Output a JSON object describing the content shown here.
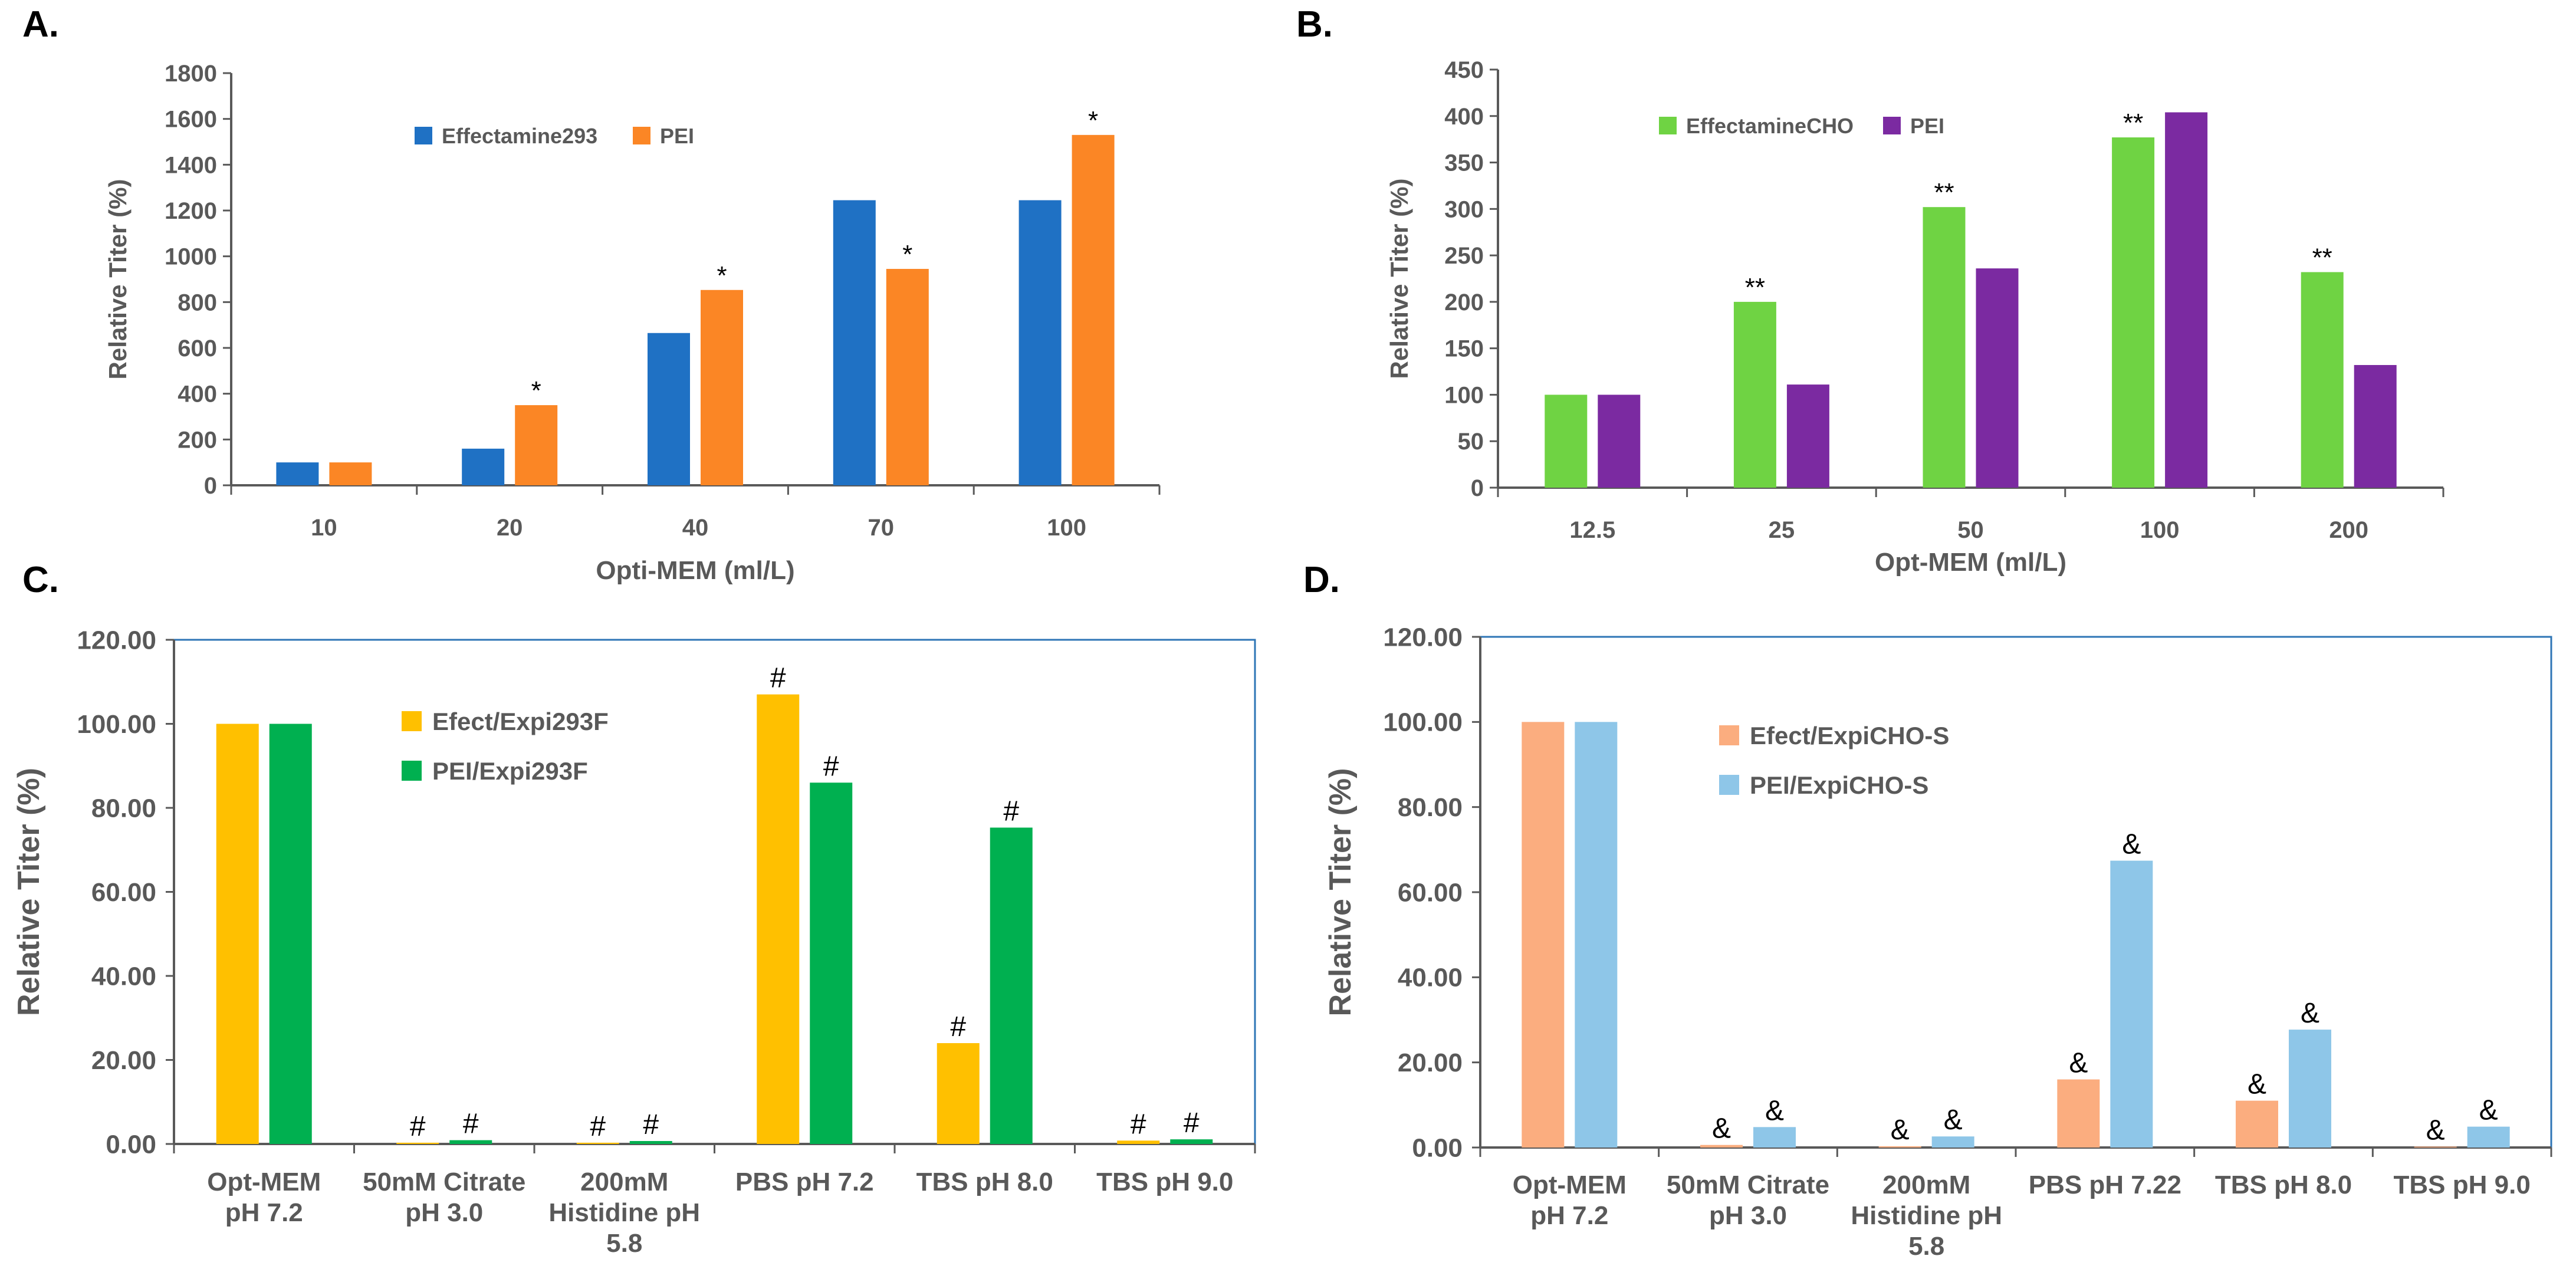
{
  "chart_data": [
    {
      "id": "A",
      "panel_label": "A.",
      "type": "bar",
      "title": "",
      "xlabel": "Opti-MEM (ml/L)",
      "ylabel": "Relative Titer (%)",
      "ylim": [
        0,
        1800
      ],
      "ytick_step": 200,
      "ytick_decimals": 0,
      "grid": false,
      "legend_position": "top-center",
      "legend_layout": "horizontal",
      "categories": [
        "10",
        "20",
        "40",
        "70",
        "100"
      ],
      "series": [
        {
          "name": "Effectamine293",
          "color": "#1f71c4",
          "values": [
            100,
            160,
            665,
            1245,
            1245
          ],
          "annotations": [
            "",
            "",
            "",
            "",
            ""
          ]
        },
        {
          "name": "PEI",
          "color": "#fb8625",
          "values": [
            100,
            350,
            853,
            945,
            1530
          ],
          "annotations": [
            "",
            "*",
            "*",
            "*",
            "*"
          ]
        }
      ]
    },
    {
      "id": "B",
      "panel_label": "B.",
      "type": "bar",
      "title": "",
      "xlabel": "Opt-MEM (ml/L)",
      "ylabel": "Relative Titer (%)",
      "ylim": [
        0,
        450
      ],
      "ytick_step": 50,
      "ytick_decimals": 0,
      "grid": false,
      "legend_position": "top-left",
      "legend_layout": "horizontal",
      "categories": [
        "12.5",
        "25",
        "50",
        "100",
        "200"
      ],
      "series": [
        {
          "name": "EffectamineCHO",
          "color": "#6fd343",
          "values": [
            100,
            200,
            302,
            377,
            232
          ],
          "annotations": [
            "",
            "**",
            "**",
            "**",
            "**"
          ]
        },
        {
          "name": "PEI",
          "color": "#7b2aa1",
          "values": [
            100,
            111,
            236,
            404,
            132
          ],
          "annotations": [
            "",
            "",
            "",
            "",
            ""
          ]
        }
      ]
    },
    {
      "id": "C",
      "panel_label": "C.",
      "type": "bar",
      "title": "",
      "xlabel": "",
      "ylabel": "Relative Titer (%)",
      "ylim": [
        0,
        120
      ],
      "ytick_step": 20,
      "ytick_decimals": 2,
      "grid": false,
      "legend_position": "top-left",
      "legend_layout": "vertical",
      "categories": [
        "Opt-MEM pH 7.2",
        "50mM Citrate pH 3.0",
        "200mM Histidine pH 5.8",
        "PBS pH 7.2",
        "TBS pH 8.0",
        "TBS pH 9.0"
      ],
      "category_lines": [
        [
          "Opt-MEM",
          "pH 7.2"
        ],
        [
          "50mM Citrate",
          "pH 3.0"
        ],
        [
          "200mM",
          "Histidine pH",
          "5.8"
        ],
        [
          "PBS pH 7.2"
        ],
        [
          "TBS pH 8.0"
        ],
        [
          "TBS pH 9.0"
        ]
      ],
      "series": [
        {
          "name": "Efect/Expi293F",
          "color": "#ffc000",
          "values": [
            100,
            0.3,
            0.3,
            107,
            24,
            0.8
          ],
          "annotations": [
            "",
            "#",
            "#",
            "#",
            "#",
            "#"
          ]
        },
        {
          "name": "PEI/Expi293F",
          "color": "#00b050",
          "values": [
            100,
            0.9,
            0.7,
            86,
            75.3,
            1.1
          ],
          "annotations": [
            "",
            "#",
            "#",
            "#",
            "#",
            "#"
          ]
        }
      ]
    },
    {
      "id": "D",
      "panel_label": "D.",
      "type": "bar",
      "title": "",
      "xlabel": "",
      "ylabel": "Relative Titer (%)",
      "ylim": [
        0,
        120
      ],
      "ytick_step": 20,
      "ytick_decimals": 2,
      "grid": false,
      "legend_position": "top-left",
      "legend_layout": "vertical",
      "categories": [
        "Opt-MEM pH 7.2",
        "50mM Citrate pH 3.0",
        "200mM Histidine pH 5.8",
        "PBS pH 7.22",
        "TBS pH 8.0",
        "TBS pH 9.0"
      ],
      "category_lines": [
        [
          "Opt-MEM",
          "pH 7.2"
        ],
        [
          "50mM Citrate",
          "pH 3.0"
        ],
        [
          "200mM",
          "Histidine pH",
          "5.8"
        ],
        [
          "PBS pH 7.22"
        ],
        [
          "TBS pH 8.0"
        ],
        [
          "TBS pH 9.0"
        ]
      ],
      "series": [
        {
          "name": "Efect/ExpiCHO-S",
          "color": "#fbad7f",
          "values": [
            100,
            0.6,
            0.3,
            16,
            11,
            0.2
          ],
          "annotations": [
            "",
            "&",
            "&",
            "&",
            "&",
            "&"
          ]
        },
        {
          "name": "PEI/ExpiCHO-S",
          "color": "#8ec6e8",
          "values": [
            100,
            4.8,
            2.6,
            67.4,
            27.7,
            4.9
          ],
          "annotations": [
            "",
            "&",
            "&",
            "&",
            "&",
            "&"
          ]
        }
      ]
    }
  ]
}
